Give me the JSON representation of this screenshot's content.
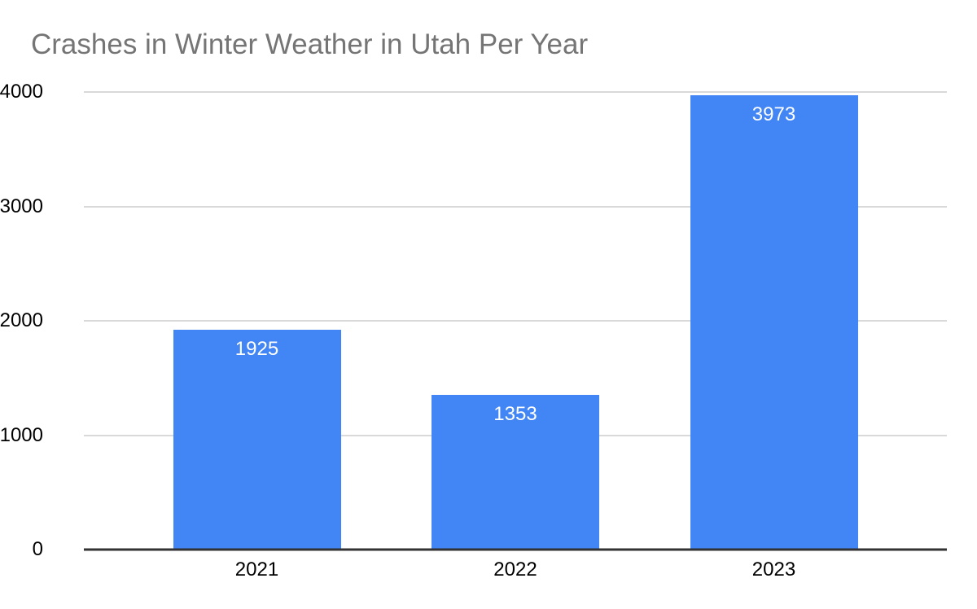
{
  "title": "Crashes in Winter Weather in Utah Per Year",
  "colors": {
    "bar": "#4285f4",
    "title_text": "#757575",
    "gridline": "#d9d9d9",
    "axis_line": "#333333",
    "bar_label_text": "#ffffff",
    "tick_label_text": "#000000",
    "background": "#ffffff"
  },
  "chart_data": {
    "type": "bar",
    "title": "Crashes in Winter Weather in Utah Per Year",
    "categories": [
      "2021",
      "2022",
      "2023"
    ],
    "values": [
      1925,
      1353,
      3973
    ],
    "data_labels": [
      "1925",
      "1353",
      "3973"
    ],
    "xlabel": "",
    "ylabel": "",
    "ylim": [
      0,
      4000
    ],
    "yticks": [
      0,
      1000,
      2000,
      3000,
      4000
    ],
    "ytick_labels": [
      "0",
      "1000",
      "2000",
      "3000",
      "4000"
    ],
    "grid": true,
    "legend": "none",
    "bar_orientation": "vertical",
    "data_label_position": "inside-top"
  }
}
